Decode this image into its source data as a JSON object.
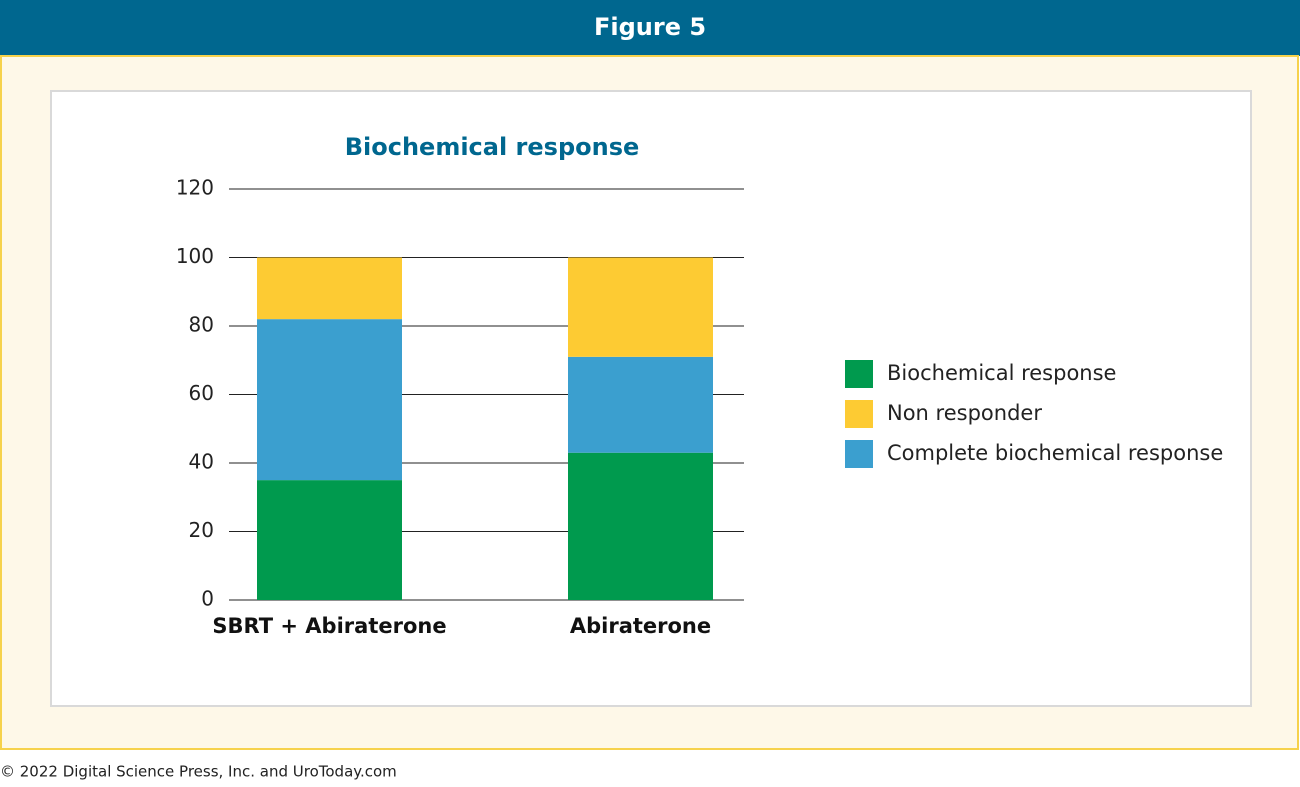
{
  "header": {
    "title": "Figure 5"
  },
  "footer": "© 2022 Digital Science Press, Inc. and UroToday.com",
  "chart_data": {
    "type": "stacked-bar",
    "title": "Biochemical response",
    "categories": [
      "SBRT + Abiraterone",
      "Abiraterone"
    ],
    "series": [
      {
        "name": "Biochemical response",
        "color": "#009a4e",
        "values": [
          35,
          43
        ]
      },
      {
        "name": "Non responder",
        "color": "#fdcb33",
        "values": [
          18,
          29
        ]
      },
      {
        "name": "Complete biochemical response",
        "color": "#3b9fcf",
        "values": [
          47,
          28
        ]
      }
    ],
    "ylim": [
      0,
      120
    ],
    "yticks": [
      0,
      20,
      40,
      60,
      80,
      100,
      120
    ],
    "grid": true,
    "legend": "right"
  }
}
